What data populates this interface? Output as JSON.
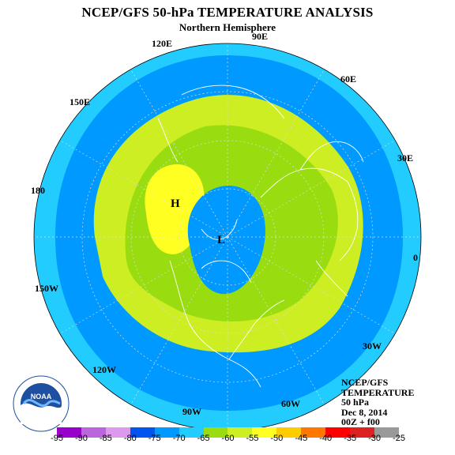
{
  "title": "NCEP/GFS 50-hPa TEMPERATURE ANALYSIS",
  "subtitle": "Northern Hemisphere",
  "longitude_labels": [
    "90E",
    "60E",
    "30E",
    "0",
    "30W",
    "60W",
    "90W",
    "120W",
    "150W",
    "180",
    "150E",
    "120E"
  ],
  "pressure_markers": {
    "high": "H",
    "low": "L"
  },
  "logo_text": "NOAA",
  "info": {
    "line1": "NCEP/GFS",
    "line2": "TEMPERATURE",
    "line3": "50 hPa",
    "line4": "Dec 8, 2014",
    "line5": "00Z + f00"
  },
  "colorbar": {
    "ticks": [
      "-95",
      "-90",
      "-85",
      "-80",
      "-75",
      "-70",
      "-65",
      "-60",
      "-55",
      "-50",
      "-45",
      "-40",
      "-35",
      "-30",
      "-25"
    ],
    "colors": [
      "#9900cc",
      "#bb66dd",
      "#dd99ee",
      "#0055ee",
      "#0099ff",
      "#22ccff",
      "#99dd11",
      "#ccee22",
      "#ffff22",
      "#ffcc00",
      "#ff7700",
      "#ff0000",
      "#dd2222",
      "#999999"
    ]
  },
  "fill_colors": {
    "ocean_ring": "#22ccff",
    "mid_band": "#0099ff",
    "yellow_green": "#ccee22",
    "green": "#99dd11",
    "yellow": "#ffff22",
    "polar_low": "#0099ff",
    "coast": "#ffffff",
    "grid": "#dddddd"
  }
}
